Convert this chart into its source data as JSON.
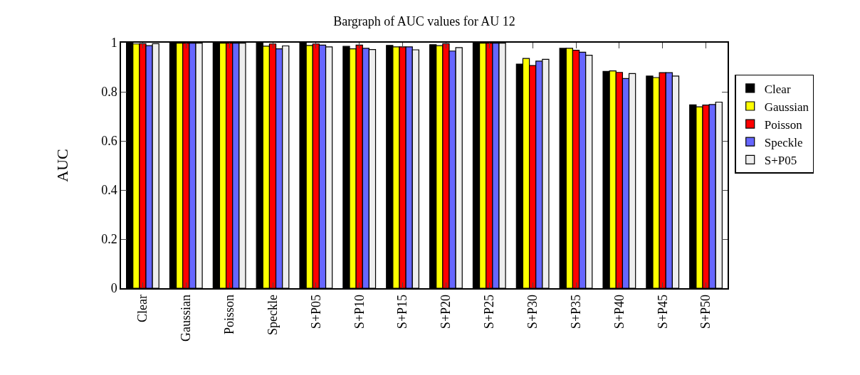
{
  "chart_data": {
    "type": "bar",
    "title": "Bargraph of AUC values for AU 12",
    "ylabel": "AUC",
    "categories": [
      "Clear",
      "Gaussian",
      "Poisson",
      "Speckle",
      "S+P05",
      "S+P10",
      "S+P15",
      "S+P20",
      "S+P25",
      "S+P30",
      "S+P35",
      "S+P40",
      "S+P45",
      "S+P50"
    ],
    "series": [
      {
        "name": "Clear",
        "color": "#000000",
        "values": [
          0.998,
          0.998,
          0.998,
          0.998,
          0.998,
          0.985,
          0.989,
          0.992,
          0.998,
          0.913,
          0.977,
          0.883,
          0.864,
          0.747
        ]
      },
      {
        "name": "Gaussian",
        "color": "#ffff00",
        "values": [
          0.995,
          0.998,
          0.998,
          0.986,
          0.989,
          0.975,
          0.983,
          0.988,
          0.998,
          0.936,
          0.977,
          0.885,
          0.858,
          0.739
        ]
      },
      {
        "name": "Poisson",
        "color": "#ff0000",
        "values": [
          0.996,
          0.998,
          0.998,
          0.995,
          0.995,
          0.99,
          0.983,
          0.996,
          0.998,
          0.907,
          0.969,
          0.879,
          0.878,
          0.746
        ]
      },
      {
        "name": "Speckle",
        "color": "#6666ff",
        "values": [
          0.988,
          0.998,
          0.998,
          0.975,
          0.99,
          0.977,
          0.983,
          0.966,
          0.998,
          0.925,
          0.961,
          0.854,
          0.878,
          0.748
        ]
      },
      {
        "name": "S+P05",
        "color": "#eeeeee",
        "values": [
          0.996,
          0.998,
          0.998,
          0.987,
          0.983,
          0.972,
          0.971,
          0.98,
          0.998,
          0.932,
          0.949,
          0.874,
          0.864,
          0.758
        ]
      }
    ],
    "ylim": [
      0,
      1
    ],
    "yticks": [
      0,
      0.2,
      0.4,
      0.6,
      0.8,
      1
    ],
    "legend": "right"
  }
}
